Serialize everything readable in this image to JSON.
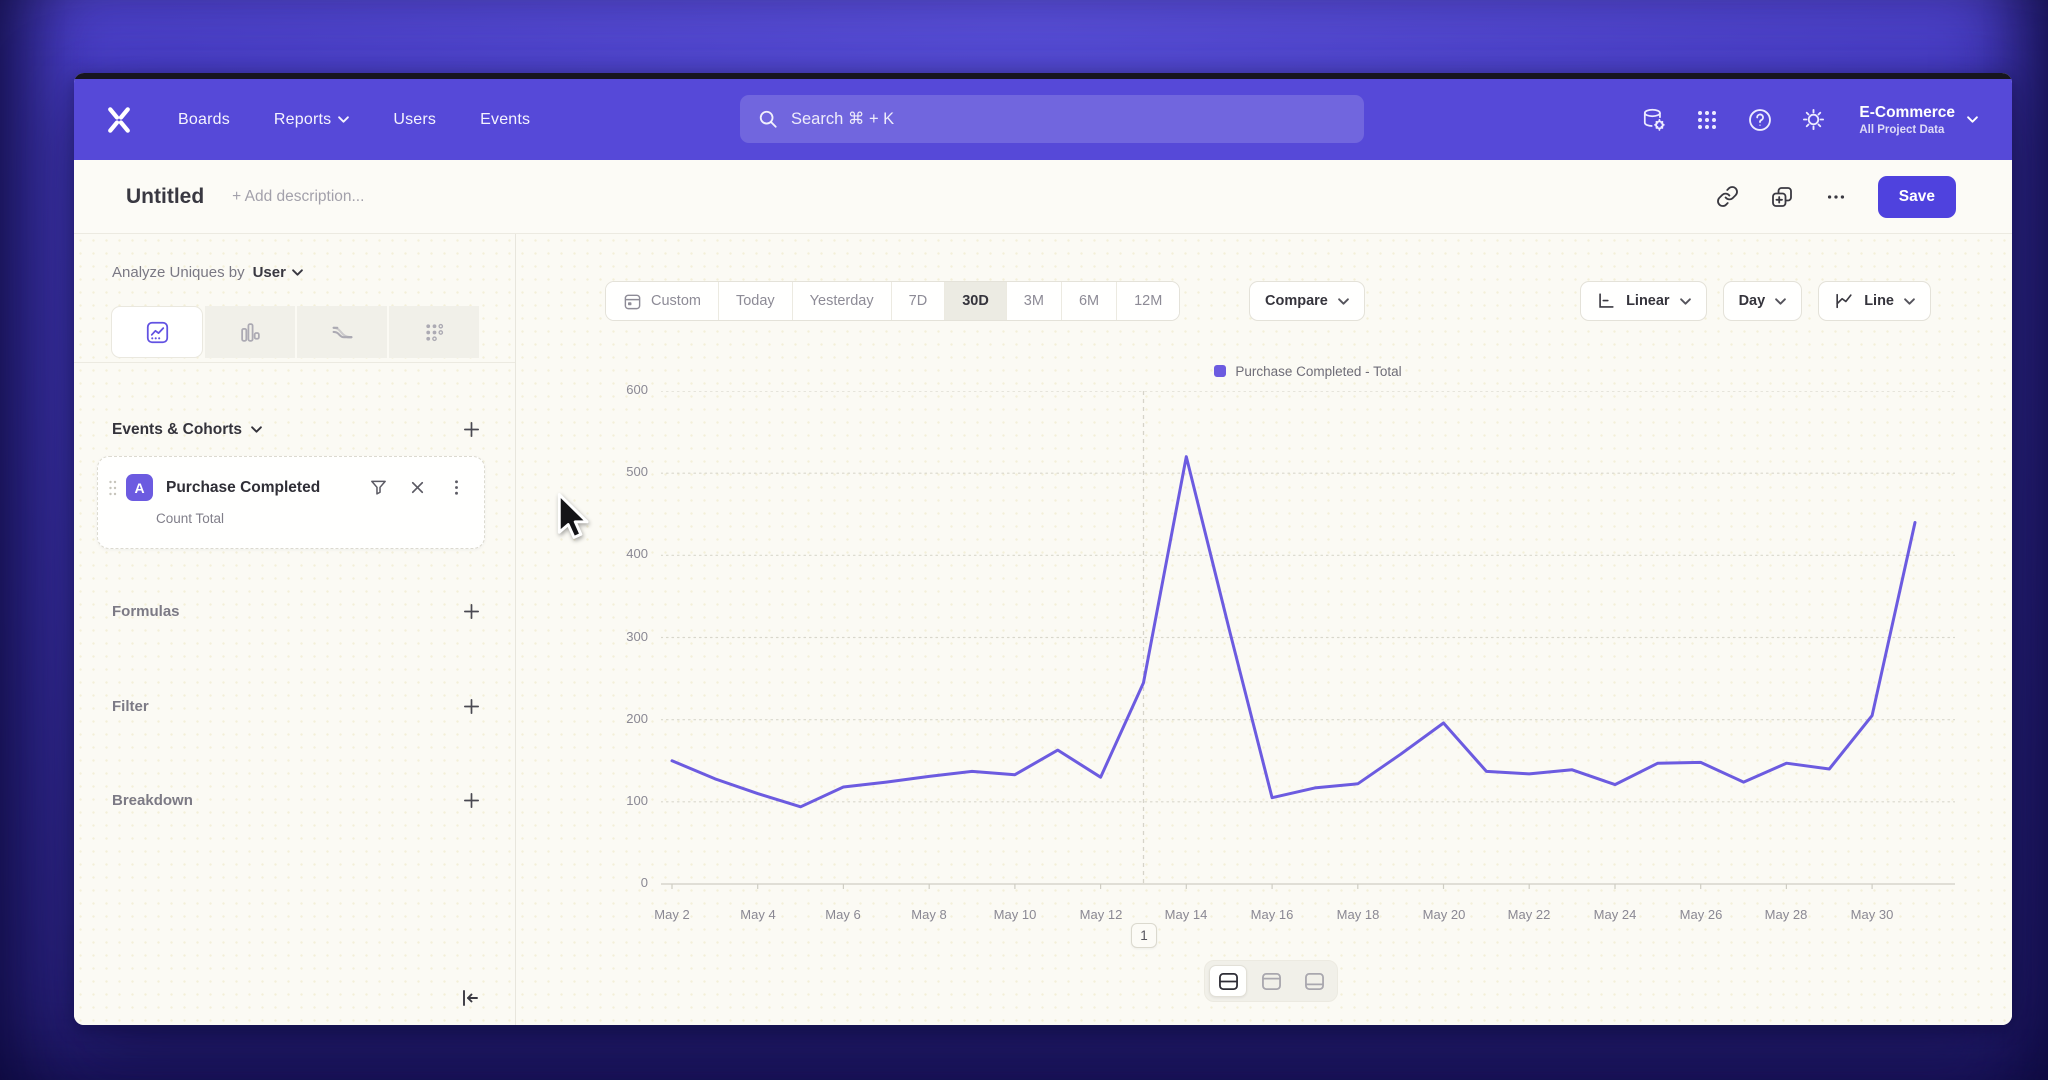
{
  "nav": {
    "menu": [
      "Boards",
      "Reports",
      "Users",
      "Events"
    ],
    "search_placeholder": "Search  ⌘ + K",
    "project": {
      "name": "E-Commerce",
      "scope": "All Project Data"
    }
  },
  "title_bar": {
    "title": "Untitled",
    "description_placeholder": "+ Add description...",
    "save_label": "Save"
  },
  "sidebar": {
    "analyze_label": "Analyze Uniques by",
    "analyze_value": "User",
    "events_section_label": "Events & Cohorts",
    "event_card": {
      "badge": "A",
      "name": "Purchase Completed",
      "metric": "Count Total"
    },
    "sections": [
      "Formulas",
      "Filter",
      "Breakdown"
    ]
  },
  "toolbar": {
    "date_ranges": [
      "Custom",
      "Today",
      "Yesterday",
      "7D",
      "30D",
      "3M",
      "6M",
      "12M"
    ],
    "active_range": "30D",
    "compare_label": "Compare",
    "scale_label": "Linear",
    "granularity_label": "Day",
    "chart_type_label": "Line"
  },
  "chart_data": {
    "type": "line",
    "title": "",
    "legend_position": "top-center",
    "grid": "horizontal-dotted",
    "ylim": [
      0,
      600
    ],
    "yticks": [
      0,
      100,
      200,
      300,
      400,
      500,
      600
    ],
    "x": [
      "May 2",
      "May 3",
      "May 4",
      "May 5",
      "May 6",
      "May 7",
      "May 8",
      "May 9",
      "May 10",
      "May 11",
      "May 12",
      "May 13",
      "May 14",
      "May 15",
      "May 16",
      "May 17",
      "May 18",
      "May 19",
      "May 20",
      "May 21",
      "May 22",
      "May 23",
      "May 24",
      "May 25",
      "May 26",
      "May 27",
      "May 28",
      "May 29",
      "May 30",
      "May 31"
    ],
    "x_tick_labels": [
      "May 2",
      "May 4",
      "May 6",
      "May 8",
      "May 10",
      "May 12",
      "May 14",
      "May 16",
      "May 18",
      "May 20",
      "May 22",
      "May 24",
      "May 26",
      "May 28",
      "May 30"
    ],
    "series": [
      {
        "name": "Purchase Completed - Total",
        "color": "#6C5BE0",
        "values": [
          150,
          128,
          110,
          94,
          118,
          124,
          131,
          137,
          133,
          163,
          130,
          245,
          520,
          310,
          105,
          117,
          122,
          158,
          196,
          137,
          134,
          139,
          121,
          147,
          148,
          124,
          147,
          140,
          205,
          440
        ]
      }
    ],
    "annotation": {
      "label": "1",
      "x": "May 13"
    }
  },
  "footer": {
    "layout_toggles": [
      "split-view",
      "chart-top",
      "chart-bottom"
    ],
    "active_toggle": "split-view"
  },
  "icons": {
    "nav": [
      "mixpanel-logo",
      "search",
      "data-management",
      "apps-grid",
      "help",
      "settings",
      "chevron-down"
    ],
    "title_bar": [
      "link",
      "duplicate",
      "more-horizontal"
    ],
    "sidebar": [
      "insights-tab",
      "bar-chart-tab",
      "flows-tab",
      "retention-tab",
      "drag-handle",
      "filter-funnel",
      "remove-x",
      "kebab-menu",
      "plus",
      "collapse-left"
    ],
    "toolbar": [
      "calendar",
      "axis-linear",
      "line-chart"
    ]
  },
  "colors": {
    "nav_bg": "#5649D8",
    "accent": "#4F42DE",
    "line": "#6C5BE0",
    "content_bg": "#FBFAF4",
    "active_segment_bg": "#ECEBE3"
  }
}
